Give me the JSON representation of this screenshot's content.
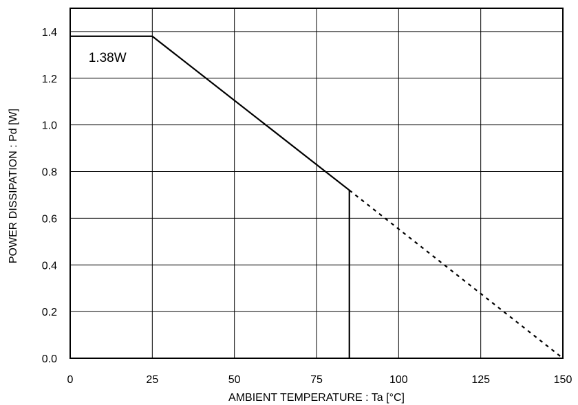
{
  "chart_data": {
    "type": "line",
    "title": "",
    "xlabel": "AMBIENT TEMPERATURE : Ta [°C]",
    "ylabel": "POWER DISSIPATION : Pd [W]",
    "xlim": [
      0,
      150
    ],
    "ylim": [
      0,
      1.5
    ],
    "x_ticks": [
      0,
      25,
      50,
      75,
      100,
      125,
      150
    ],
    "x_tick_labels": [
      "0",
      "25",
      "50",
      "75",
      "100",
      "125",
      "150"
    ],
    "y_ticks": [
      0,
      0.2,
      0.4,
      0.6,
      0.8,
      1.0,
      1.2,
      1.4
    ],
    "y_tick_labels": [
      "0.0",
      "0.2",
      "0.4",
      "0.6",
      "0.8",
      "1.0",
      "1.2",
      "1.4"
    ],
    "grid": true,
    "series": [
      {
        "style": "solid",
        "color": "#000000",
        "x": [
          0,
          25,
          85,
          85
        ],
        "y": [
          1.38,
          1.38,
          0.72,
          0.0
        ]
      },
      {
        "style": "dashed",
        "color": "#000000",
        "x": [
          85,
          150
        ],
        "y": [
          0.72,
          0.0
        ]
      }
    ],
    "annotations": [
      {
        "text": "1.38W",
        "x": 1.0,
        "y": 1.3
      }
    ]
  }
}
